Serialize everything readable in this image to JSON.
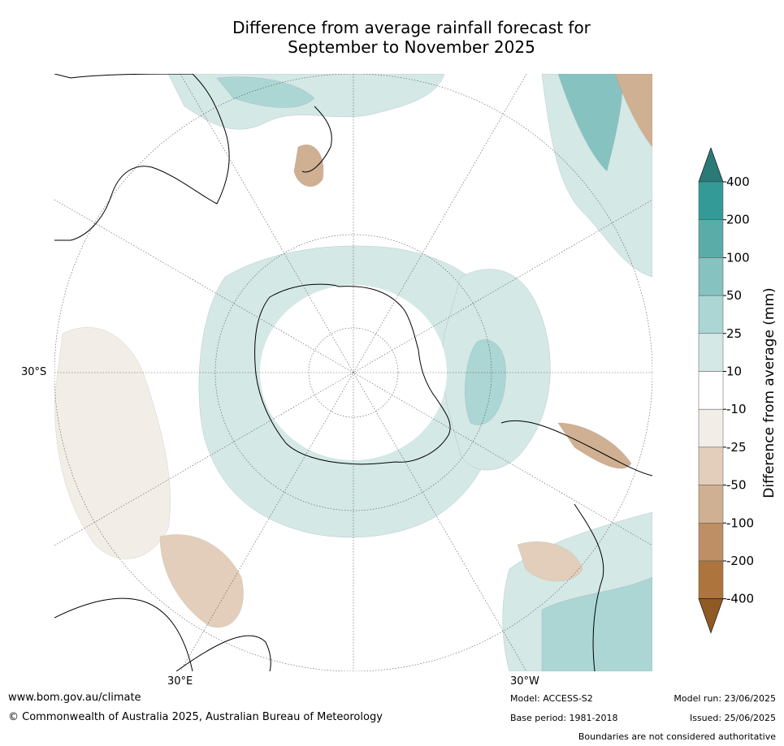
{
  "title": {
    "line1": "Difference from average rainfall forecast for",
    "line2": "September to November 2025"
  },
  "map": {
    "projection": "south-polar-stereographic",
    "graticule_labels": [
      "30°S",
      "30°E",
      "30°W"
    ]
  },
  "colorbar": {
    "title": "Difference from average (mm)",
    "ticks": [
      "400",
      "200",
      "100",
      "50",
      "25",
      "10",
      "-10",
      "-25",
      "-50",
      "-100",
      "-200",
      "-400"
    ],
    "colors": {
      "over": "#2a7a78",
      "bins": [
        "#339a98",
        "#5aaca9",
        "#86c3c0",
        "#abd6d3",
        "#d4e8e6",
        "#ffffff",
        "#f2ede6",
        "#e2cebb",
        "#d0b092",
        "#be8f64",
        "#ad743e"
      ],
      "under": "#8f5a24"
    }
  },
  "footer": {
    "url": "www.bom.gov.au/climate",
    "copyright": "© Commonwealth of Australia 2025, Australian Bureau of Meteorology",
    "model": "Model: ACCESS-S2",
    "base_period": "Base period: 1981-2018",
    "model_run": "Model run: 23/06/2025",
    "issued": "Issued: 25/06/2025",
    "disclaimer": "Boundaries are not considered authoritative"
  }
}
